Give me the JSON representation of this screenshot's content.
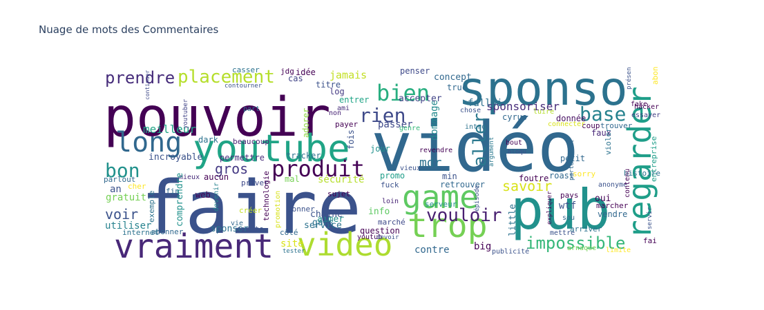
{
  "title": "Nuage de mots des Commentaires",
  "chart_data": {
    "type": "wordcloud",
    "title": "Nuage de mots des Commentaires",
    "palette": "viridis",
    "words": [
      {
        "text": "vidéo",
        "color": "#31688e"
      },
      {
        "text": "faire",
        "color": "#3b528b"
      },
      {
        "text": "pouvoir",
        "color": "#440154"
      },
      {
        "text": "sponso",
        "color": "#2c728e"
      },
      {
        "text": "pub",
        "color": "#21918c"
      },
      {
        "text": "youtube",
        "color": "#20a486"
      },
      {
        "text": "vraiment",
        "color": "#482878"
      },
      {
        "text": "video",
        "color": "#addc30"
      },
      {
        "text": "trop",
        "color": "#75d054"
      },
      {
        "text": "game",
        "color": "#5ec962"
      },
      {
        "text": "regarder",
        "color": "#1f9e89"
      },
      {
        "text": "long",
        "color": "#31688e"
      },
      {
        "text": "produit",
        "color": "#440154"
      },
      {
        "text": "bien",
        "color": "#28ae80"
      },
      {
        "text": "rien",
        "color": "#3e4989"
      },
      {
        "text": "base",
        "color": "#26828e"
      },
      {
        "text": "placement",
        "color": "#b5de2b"
      },
      {
        "text": "prendre",
        "color": "#472d7b"
      },
      {
        "text": "bon",
        "color": "#21918c"
      },
      {
        "text": "impossible",
        "color": "#35b779"
      },
      {
        "text": "vouloir",
        "color": "#481f70"
      },
      {
        "text": "savoir",
        "color": "#d8e219"
      },
      {
        "text": "aller",
        "color": "#2a788e"
      },
      {
        "text": "gros",
        "color": "#443983"
      },
      {
        "text": "mdr",
        "color": "#2c728e"
      },
      {
        "text": "voir",
        "color": "#3b528b"
      },
      {
        "text": "meilleur",
        "color": "#20a486"
      },
      {
        "text": "sponsoriser",
        "color": "#472c7a"
      },
      {
        "text": "passer",
        "color": "#3e4989"
      },
      {
        "text": "dommage",
        "color": "#238a8d"
      },
      {
        "text": "falloir",
        "color": "#2d708e"
      },
      {
        "text": "concept",
        "color": "#31688e"
      },
      {
        "text": "jamais",
        "color": "#c2df23"
      },
      {
        "text": "accepter",
        "color": "#414487"
      },
      {
        "text": "utiliser",
        "color": "#26828e"
      },
      {
        "text": "incroyable",
        "color": "#3b528b"
      },
      {
        "text": "permettre",
        "color": "#472d7b"
      },
      {
        "text": "beaucoup",
        "color": "#482475"
      },
      {
        "text": "dark",
        "color": "#2c728e"
      },
      {
        "text": "adorer",
        "color": "#8fd744"
      },
      {
        "text": "payer",
        "color": "#440154"
      },
      {
        "text": "jour",
        "color": "#21918c"
      },
      {
        "text": "fois",
        "color": "#3b528b"
      },
      {
        "text": "donnée",
        "color": "#471063"
      },
      {
        "text": "faux",
        "color": "#482878"
      },
      {
        "text": "coup",
        "color": "#440154"
      },
      {
        "text": "trouver",
        "color": "#31688e"
      },
      {
        "text": "essayer",
        "color": "#433e85"
      },
      {
        "text": "entreprise",
        "color": "#1f9e89"
      },
      {
        "text": "fake",
        "color": "#440154"
      },
      {
        "text": "abonné",
        "color": "#fde725"
      },
      {
        "text": "intro",
        "color": "#2c728e"
      },
      {
        "text": "chose",
        "color": "#3b528b"
      },
      {
        "text": "genre",
        "color": "#35b779"
      },
      {
        "text": "revendre",
        "color": "#440154"
      },
      {
        "text": "argument",
        "color": "#2a788e"
      },
      {
        "text": "partenariat",
        "color": "#31688e"
      },
      {
        "text": "luire",
        "color": "#b5de2b"
      },
      {
        "text": "connecter",
        "color": "#d8e219"
      },
      {
        "text": "bout",
        "color": "#440154"
      },
      {
        "text": "bloqu",
        "color": "#3b528b"
      },
      {
        "text": "cyrus",
        "color": "#31688e"
      },
      {
        "text": "truc",
        "color": "#31688e"
      },
      {
        "text": "idée",
        "color": "#440154"
      },
      {
        "text": "titre",
        "color": "#3b528b"
      },
      {
        "text": "log",
        "color": "#443983"
      },
      {
        "text": "cas",
        "color": "#414487"
      },
      {
        "text": "jdg",
        "color": "#440154"
      },
      {
        "text": "casser",
        "color": "#2c728e"
      },
      {
        "text": "penser",
        "color": "#3e4989"
      },
      {
        "text": "ami",
        "color": "#472d7b"
      },
      {
        "text": "non",
        "color": "#482475"
      },
      {
        "text": "entrer",
        "color": "#20a486"
      },
      {
        "text": "youtuber",
        "color": "#414487"
      },
      {
        "text": "part",
        "color": "#2c728e"
      },
      {
        "text": "continuer",
        "color": "#3e4989"
      },
      {
        "text": "contourner",
        "color": "#3b528b"
      },
      {
        "text": "tracker",
        "color": "#2c728e"
      },
      {
        "text": "sécurité",
        "color": "#b5de2b"
      },
      {
        "text": "mal",
        "color": "#75d054"
      },
      {
        "text": "priver",
        "color": "#3e4989"
      },
      {
        "text": "aucun",
        "color": "#440154"
      },
      {
        "text": "mieux",
        "color": "#472c7a"
      },
      {
        "text": "parlout",
        "color": "#31688e"
      },
      {
        "text": "an",
        "color": "#3b528b"
      },
      {
        "text": "cher",
        "color": "#fde725"
      },
      {
        "text": "gratuit",
        "color": "#75d054"
      },
      {
        "text": "web",
        "color": "#440154"
      },
      {
        "text": "fin",
        "color": "#31688e"
      },
      {
        "text": "exemple",
        "color": "#2c728e"
      },
      {
        "text": "comprendre",
        "color": "#21918c"
      },
      {
        "text": "devenir",
        "color": "#26828e"
      },
      {
        "text": "technologie",
        "color": "#440154"
      },
      {
        "text": "promotion",
        "color": "#d8e219"
      },
      {
        "text": "créer",
        "color": "#c2df23"
      },
      {
        "text": "vie",
        "color": "#31688e"
      },
      {
        "text": "sponsor",
        "color": "#2c728e"
      },
      {
        "text": "compte",
        "color": "#3b528b"
      },
      {
        "text": "abonner",
        "color": "#31688e"
      },
      {
        "text": "internet",
        "color": "#2c728e"
      },
      {
        "text": "fuck",
        "color": "#3b528b"
      },
      {
        "text": "loin",
        "color": "#482475"
      },
      {
        "text": "aimer",
        "color": "#21918c"
      },
      {
        "text": "service",
        "color": "#2c728e"
      },
      {
        "text": "chaine",
        "color": "#3b528b"
      },
      {
        "text": "gars",
        "color": "#2c728e"
      },
      {
        "text": "info",
        "color": "#5ec962"
      },
      {
        "text": "marché",
        "color": "#3e4989"
      },
      {
        "text": "sujet",
        "color": "#440154"
      },
      {
        "text": "donner",
        "color": "#3b528b"
      },
      {
        "text": "promo",
        "color": "#1f9e89"
      },
      {
        "text": "min",
        "color": "#3b528b"
      },
      {
        "text": "question",
        "color": "#440154"
      },
      {
        "text": "site",
        "color": "#d8e219"
      },
      {
        "text": "côté",
        "color": "#31688e"
      },
      {
        "text": "tester",
        "color": "#2c728e"
      },
      {
        "text": "contre",
        "color": "#31688e"
      },
      {
        "text": "big",
        "color": "#440154"
      },
      {
        "text": "publicité",
        "color": "#3b528b"
      },
      {
        "text": "retrouver",
        "color": "#31688e"
      },
      {
        "text": "serveur",
        "color": "#21918c"
      },
      {
        "text": "épisode",
        "color": "#3b528b"
      },
      {
        "text": "little",
        "color": "#2c728e"
      },
      {
        "text": "expliquer",
        "color": "#440154"
      },
      {
        "text": "mettre",
        "color": "#3b528b"
      },
      {
        "text": "arriver",
        "color": "#2c728e"
      },
      {
        "text": "foutre",
        "color": "#440154"
      },
      {
        "text": "roast",
        "color": "#31688e"
      },
      {
        "text": "wtf",
        "color": "#3b528b"
      },
      {
        "text": "pays",
        "color": "#440154"
      },
      {
        "text": "sou",
        "color": "#31688e"
      },
      {
        "text": "marcher",
        "color": "#440154"
      },
      {
        "text": "vendre",
        "color": "#31688e"
      },
      {
        "text": "oui",
        "color": "#440154"
      },
      {
        "text": "anonyme",
        "color": "#3b528b"
      },
      {
        "text": "histoire",
        "color": "#2c728e"
      },
      {
        "text": "contenu",
        "color": "#440154"
      },
      {
        "text": "petit",
        "color": "#31688e"
      },
      {
        "text": "violer",
        "color": "#2c728e"
      },
      {
        "text": "limite",
        "color": "#fde725"
      },
      {
        "text": "arnaque",
        "color": "#75d054"
      },
      {
        "text": "sorry",
        "color": "#fde725"
      },
      {
        "text": "servir",
        "color": "#3b528b"
      },
      {
        "text": "fai",
        "color": "#440154"
      },
      {
        "text": "présent",
        "color": "#3b528b"
      },
      {
        "text": "hacker",
        "color": "#440154"
      },
      {
        "text": "vieux",
        "color": "#3b528b"
      },
      {
        "text": "youtub",
        "color": "#440154"
      },
      {
        "text": "devoir",
        "color": "#3b528b"
      }
    ]
  }
}
